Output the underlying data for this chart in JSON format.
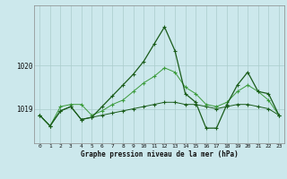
{
  "title": "Graphe pression niveau de la mer (hPa)",
  "bg_color": "#cce8ec",
  "grid_color": "#aacccc",
  "line_color_dark": "#1a5c1a",
  "line_color_mid": "#3a9a3a",
  "x_ticks": [
    0,
    1,
    2,
    3,
    4,
    5,
    6,
    7,
    8,
    9,
    10,
    11,
    12,
    13,
    14,
    15,
    16,
    17,
    18,
    19,
    20,
    21,
    22,
    23
  ],
  "ylim": [
    1018.2,
    1021.4
  ],
  "yticks": [
    1019,
    1020
  ],
  "series1": [
    1018.85,
    1018.6,
    1018.95,
    1019.05,
    1018.75,
    1018.8,
    1019.05,
    1019.3,
    1019.55,
    1019.8,
    1020.1,
    1020.5,
    1020.9,
    1020.35,
    1019.35,
    1019.15,
    1018.55,
    1018.55,
    1019.1,
    1019.55,
    1019.85,
    1019.4,
    1019.35,
    1018.85
  ],
  "series2": [
    1018.85,
    1018.6,
    1019.05,
    1019.1,
    1019.1,
    1018.85,
    1018.95,
    1019.1,
    1019.2,
    1019.4,
    1019.6,
    1019.75,
    1019.95,
    1019.85,
    1019.5,
    1019.35,
    1019.1,
    1019.05,
    1019.15,
    1019.4,
    1019.55,
    1019.4,
    1019.2,
    1018.85
  ],
  "series3": [
    1018.85,
    1018.6,
    1018.95,
    1019.05,
    1018.75,
    1018.8,
    1018.85,
    1018.9,
    1018.95,
    1019.0,
    1019.05,
    1019.1,
    1019.15,
    1019.15,
    1019.1,
    1019.1,
    1019.05,
    1019.0,
    1019.05,
    1019.1,
    1019.1,
    1019.05,
    1019.0,
    1018.85
  ]
}
